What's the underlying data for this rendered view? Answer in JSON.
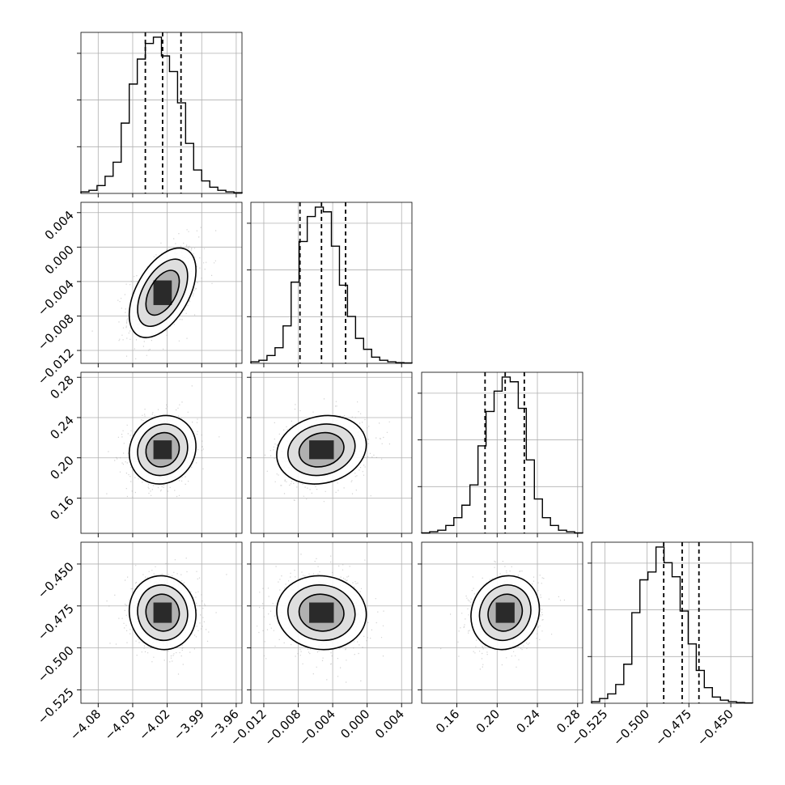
{
  "chart_data": {
    "type": "corner",
    "grid": true,
    "parameters": [
      {
        "range": [
          -4.095,
          -3.955
        ],
        "mean": -4.024,
        "sd": 0.0145,
        "quantiles": [
          -4.039,
          -4.024,
          -4.008
        ],
        "ticks": [
          -4.08,
          -4.05,
          -4.02,
          -3.99,
          -3.96
        ],
        "tick_labels": [
          "−4.08",
          "−4.05",
          "−4.02",
          "−3.99",
          "−3.96"
        ]
      },
      {
        "range": [
          -0.0135,
          0.0052
        ],
        "mean": -0.0053,
        "sd": 0.0026,
        "quantiles": [
          -0.0078,
          -0.0053,
          -0.0025
        ],
        "ticks": [
          -0.012,
          -0.008,
          -0.004,
          0.0,
          0.004
        ],
        "tick_labels": [
          "−0.012",
          "−0.008",
          "−0.004",
          "0.000",
          "0.004"
        ]
      },
      {
        "range": [
          0.125,
          0.285
        ],
        "mean": 0.208,
        "sd": 0.017,
        "quantiles": [
          0.188,
          0.208,
          0.227
        ],
        "ticks": [
          0.16,
          0.2,
          0.24,
          0.28
        ],
        "tick_labels": [
          "0.16",
          "0.20",
          "0.24",
          "0.28"
        ]
      },
      {
        "range": [
          -0.533,
          -0.437
        ],
        "mean": -0.479,
        "sd": 0.011,
        "quantiles": [
          -0.49,
          -0.479,
          -0.469
        ],
        "ticks": [
          -0.525,
          -0.5,
          -0.475,
          -0.45
        ],
        "tick_labels": [
          "−0.525",
          "−0.500",
          "−0.475",
          "−0.450"
        ]
      }
    ],
    "histograms": [
      [
        0.01,
        0.02,
        0.05,
        0.11,
        0.2,
        0.45,
        0.7,
        0.86,
        0.96,
        1.0,
        0.88,
        0.78,
        0.58,
        0.32,
        0.15,
        0.08,
        0.04,
        0.02,
        0.01,
        0.005
      ],
      [
        0.01,
        0.02,
        0.05,
        0.1,
        0.24,
        0.52,
        0.78,
        0.94,
        1.0,
        0.97,
        0.75,
        0.5,
        0.3,
        0.16,
        0.09,
        0.04,
        0.02,
        0.01,
        0.005,
        0.003
      ],
      [
        0.003,
        0.01,
        0.02,
        0.05,
        0.1,
        0.18,
        0.31,
        0.56,
        0.78,
        0.91,
        1.0,
        0.97,
        0.8,
        0.47,
        0.22,
        0.1,
        0.05,
        0.02,
        0.01,
        0.003
      ],
      [
        0.01,
        0.03,
        0.06,
        0.12,
        0.25,
        0.58,
        0.79,
        0.84,
        1.0,
        0.9,
        0.81,
        0.59,
        0.38,
        0.21,
        0.1,
        0.04,
        0.02,
        0.01,
        0.005,
        0.002
      ]
    ],
    "correlations": [
      [
        1,
        0.5,
        0.1,
        -0.05
      ],
      [
        0.5,
        1,
        0.15,
        -0.05
      ],
      [
        0.1,
        0.15,
        1,
        0.1
      ],
      [
        -0.05,
        -0.05,
        0.1,
        1
      ]
    ],
    "contour_levels_sigma": [
      0.5,
      1.0,
      1.5,
      2.0
    ]
  }
}
